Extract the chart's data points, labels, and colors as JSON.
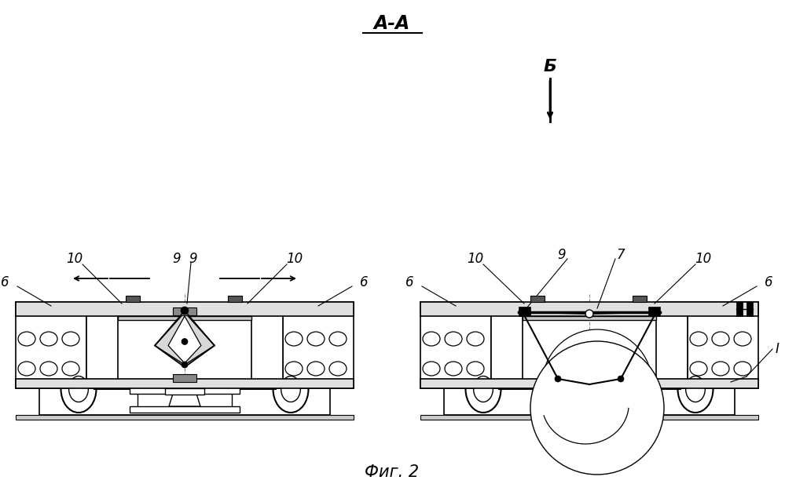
{
  "bg_color": "#ffffff",
  "lc": "#000000",
  "title_aa": "А-А",
  "title_fig": "Фиг. 2",
  "label_b": "Б",
  "fig_width": 9.99,
  "fig_height": 6.4,
  "dpi": 100
}
